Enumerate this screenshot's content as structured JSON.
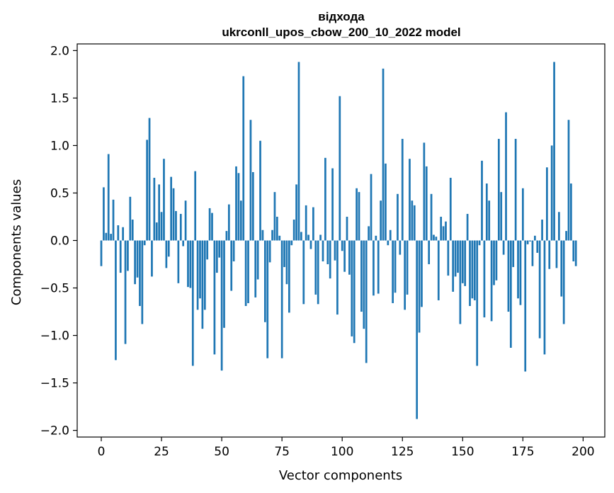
{
  "chart_data": {
    "type": "bar",
    "title": "відхода",
    "subtitle": "ukrconll_upos_cbow_200_10_2022 model",
    "xlabel": "Vector components",
    "ylabel": "Components values",
    "xlim": [
      -10,
      209
    ],
    "ylim": [
      -2.07,
      2.07
    ],
    "xticks": [
      0,
      25,
      50,
      75,
      100,
      125,
      150,
      175,
      200
    ],
    "yticks": [
      -2.0,
      -1.5,
      -1.0,
      -0.5,
      0.0,
      0.5,
      1.0,
      1.5,
      2.0
    ],
    "ytick_labels": [
      "−2.0",
      "−1.5",
      "−1.0",
      "−0.5",
      "0.0",
      "0.5",
      "1.0",
      "1.5",
      "2.0"
    ],
    "bar_color": "#1f77b4",
    "grid": false,
    "values": [
      -0.27,
      0.56,
      0.08,
      0.91,
      0.07,
      0.43,
      -1.26,
      0.16,
      -0.34,
      0.14,
      -1.09,
      -0.32,
      0.46,
      0.22,
      -0.46,
      -0.39,
      -0.69,
      -0.88,
      -0.05,
      1.06,
      1.29,
      -0.38,
      0.66,
      0.19,
      0.59,
      0.3,
      0.86,
      -0.29,
      -0.17,
      0.67,
      0.55,
      0.31,
      -0.45,
      0.28,
      -0.06,
      0.42,
      -0.49,
      -0.5,
      -1.32,
      0.73,
      -0.73,
      -0.61,
      -0.93,
      -0.73,
      -0.2,
      0.34,
      0.29,
      -1.2,
      -0.34,
      -0.18,
      -1.37,
      -0.92,
      0.1,
      0.38,
      -0.53,
      -0.22,
      0.78,
      0.71,
      0.42,
      1.73,
      -0.69,
      -0.66,
      1.27,
      0.72,
      -0.6,
      -0.41,
      1.05,
      0.11,
      -0.86,
      -1.24,
      -0.23,
      0.11,
      0.51,
      0.25,
      0.05,
      -1.24,
      -0.28,
      -0.46,
      -0.76,
      -0.05,
      0.22,
      0.59,
      1.88,
      0.09,
      -0.67,
      0.37,
      0.06,
      -0.09,
      0.35,
      -0.57,
      -0.67,
      0.06,
      -0.22,
      0.87,
      -0.25,
      -0.4,
      0.76,
      -0.21,
      -0.78,
      1.52,
      -0.11,
      -0.33,
      0.25,
      -0.36,
      -1.01,
      -1.08,
      0.55,
      0.51,
      -0.75,
      -0.93,
      -1.29,
      0.15,
      0.7,
      -0.58,
      0.05,
      -0.56,
      0.42,
      1.81,
      0.81,
      -0.05,
      0.11,
      -0.66,
      -0.55,
      0.49,
      -0.15,
      1.07,
      -0.73,
      -0.57,
      0.86,
      0.42,
      0.37,
      -1.88,
      -0.97,
      -0.7,
      1.03,
      0.78,
      -0.25,
      0.49,
      0.06,
      0.04,
      -0.63,
      0.25,
      0.15,
      0.2,
      -0.37,
      0.66,
      -0.54,
      -0.38,
      -0.34,
      -0.88,
      -0.45,
      -0.48,
      0.28,
      -0.69,
      -0.61,
      -0.63,
      -1.32,
      -0.05,
      0.84,
      -0.81,
      0.6,
      0.42,
      -0.85,
      -0.47,
      -0.42,
      1.07,
      0.51,
      -0.15,
      1.35,
      -0.75,
      -1.13,
      -0.28,
      1.07,
      -0.61,
      -0.68,
      0.55,
      -1.38,
      -0.04,
      -0.01,
      -0.27,
      0.05,
      -0.13,
      -1.03,
      0.22,
      -1.2,
      0.77,
      -0.3,
      1.0,
      1.88,
      -0.29,
      0.3,
      -0.59,
      -0.88,
      0.1,
      1.27,
      0.6,
      -0.22,
      -0.27
    ]
  }
}
